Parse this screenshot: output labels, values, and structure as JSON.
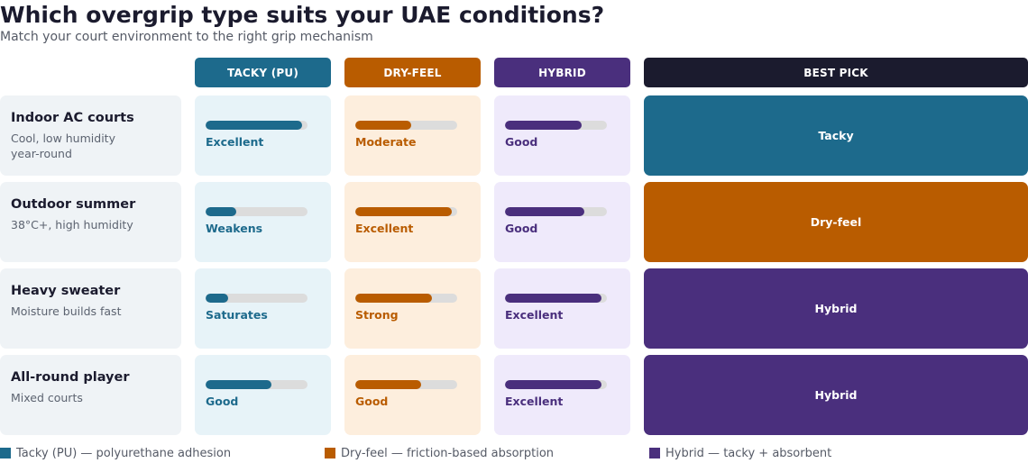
{
  "title": "Which overgrip type suits your UAE conditions?",
  "subtitle": "Match your court environment to the right grip mechanism",
  "colors": {
    "tacky": "#1d6a8c",
    "dryfeel": "#b95c00",
    "hybrid": "#4a2f7d",
    "best_header": "#1b1b2e",
    "tacky_bg": "#e7f3f8",
    "dryfeel_bg": "#fdeedd",
    "hybrid_bg": "#efeafb"
  },
  "columns": {
    "tacky": "TACKY (PU)",
    "dryfeel": "DRY-FEEL",
    "hybrid": "HYBRID",
    "best": "BEST PICK"
  },
  "rows": [
    {
      "name": "Indoor AC courts",
      "desc": "Cool, low humidity year-round",
      "tacky": {
        "rating": "Excellent",
        "level": 0.95
      },
      "dryfeel": {
        "rating": "Moderate",
        "level": 0.55
      },
      "hybrid": {
        "rating": "Good",
        "level": 0.75
      },
      "best": "Tacky",
      "best_type": "tacky"
    },
    {
      "name": "Outdoor summer",
      "desc": "38°C+, high humidity",
      "tacky": {
        "rating": "Weakens",
        "level": 0.3
      },
      "dryfeel": {
        "rating": "Excellent",
        "level": 0.95
      },
      "hybrid": {
        "rating": "Good",
        "level": 0.78
      },
      "best": "Dry-feel",
      "best_type": "dryfeel"
    },
    {
      "name": "Heavy sweater",
      "desc": "Moisture builds fast",
      "tacky": {
        "rating": "Saturates",
        "level": 0.22
      },
      "dryfeel": {
        "rating": "Strong",
        "level": 0.75
      },
      "hybrid": {
        "rating": "Excellent",
        "level": 0.95
      },
      "best": "Hybrid",
      "best_type": "hybrid"
    },
    {
      "name": "All-round player",
      "desc": "Mixed courts",
      "tacky": {
        "rating": "Good",
        "level": 0.65
      },
      "dryfeel": {
        "rating": "Good",
        "level": 0.65
      },
      "hybrid": {
        "rating": "Excellent",
        "level": 0.95
      },
      "best": "Hybrid",
      "best_type": "hybrid"
    }
  ],
  "legend": [
    {
      "label": "Tacky (PU) — polyurethane adhesion",
      "type": "tacky"
    },
    {
      "label": "Dry-feel — friction-based absorption",
      "type": "dryfeel"
    },
    {
      "label": "Hybrid — tacky + absorbent",
      "type": "hybrid"
    }
  ]
}
